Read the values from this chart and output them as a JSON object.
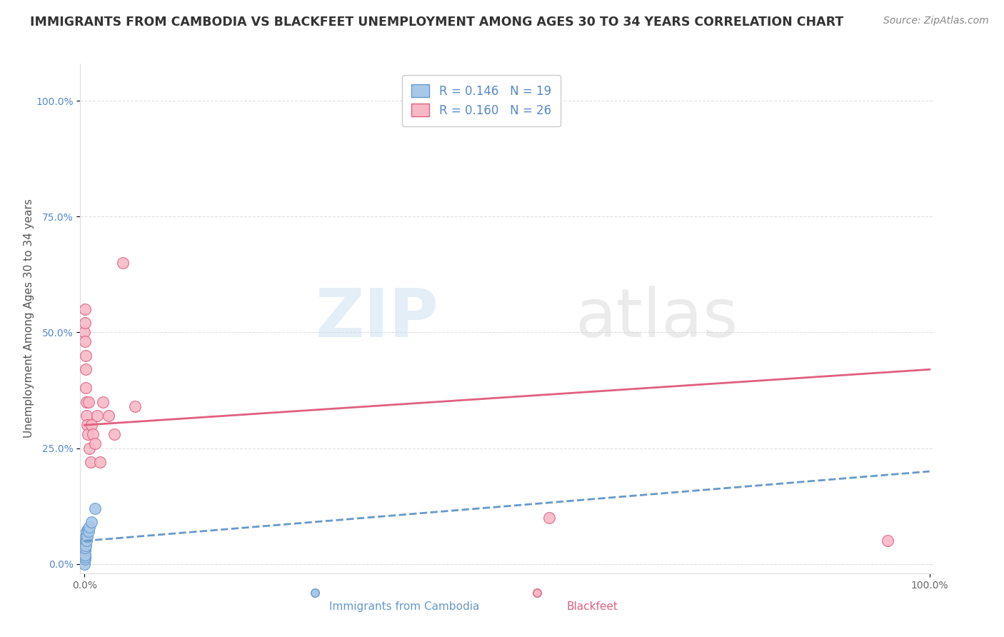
{
  "title": "IMMIGRANTS FROM CAMBODIA VS BLACKFEET UNEMPLOYMENT AMONG AGES 30 TO 34 YEARS CORRELATION CHART",
  "source": "Source: ZipAtlas.com",
  "ylabel": "Unemployment Among Ages 30 to 34 years",
  "xlim": [
    0.0,
    1.0
  ],
  "ylim": [
    0.0,
    1.0
  ],
  "ytick_values": [
    0.0,
    0.25,
    0.5,
    0.75,
    1.0
  ],
  "ytick_labels": [
    "0.0%",
    "25.0%",
    "50.0%",
    "75.0%",
    "100.0%"
  ],
  "xtick_values": [
    0.0,
    1.0
  ],
  "xtick_labels": [
    "0.0%",
    "100.0%"
  ],
  "legend_R1": "0.146",
  "legend_N1": "19",
  "legend_R2": "0.160",
  "legend_N2": "26",
  "color_cambodia_fill": "#a8c8e8",
  "color_cambodia_edge": "#6699cc",
  "color_blackfeet_fill": "#f8b8c8",
  "color_blackfeet_edge": "#e06080",
  "color_line_cambodia": "#6699cc",
  "color_line_blackfeet": "#e06080",
  "color_tick_right": "#5588cc",
  "watermark_color": "#d8e8f0",
  "background_color": "#ffffff",
  "grid_color": "#e0e0e0",
  "title_color": "#333333",
  "title_fontsize": 12.5,
  "axis_label_fontsize": 11,
  "tick_fontsize": 10,
  "legend_fontsize": 12,
  "source_fontsize": 10,
  "cambodia_x": [
    0.0,
    0.0002,
    0.0003,
    0.0004,
    0.0005,
    0.0006,
    0.0007,
    0.0008,
    0.001,
    0.0012,
    0.0015,
    0.002,
    0.0025,
    0.003,
    0.004,
    0.005,
    0.006,
    0.008,
    0.012
  ],
  "cambodia_y": [
    0.0,
    0.01,
    0.02,
    0.015,
    0.03,
    0.02,
    0.04,
    0.035,
    0.05,
    0.04,
    0.06,
    0.05,
    0.07,
    0.06,
    0.075,
    0.07,
    0.08,
    0.09,
    0.12
  ],
  "blackfeet_x": [
    0.0,
    0.0003,
    0.0005,
    0.0008,
    0.001,
    0.0012,
    0.0015,
    0.002,
    0.0025,
    0.003,
    0.004,
    0.005,
    0.006,
    0.007,
    0.008,
    0.01,
    0.012,
    0.015,
    0.018,
    0.022,
    0.028,
    0.035,
    0.045,
    0.06,
    0.55,
    0.95
  ],
  "blackfeet_y": [
    0.5,
    0.55,
    0.52,
    0.48,
    0.45,
    0.42,
    0.38,
    0.35,
    0.32,
    0.3,
    0.28,
    0.35,
    0.25,
    0.22,
    0.3,
    0.28,
    0.26,
    0.32,
    0.22,
    0.35,
    0.32,
    0.28,
    0.65,
    0.34,
    0.1,
    0.05
  ],
  "trend_cam_x0": 0.0,
  "trend_cam_x1": 1.0,
  "trend_cam_y0": 0.05,
  "trend_cam_y1": 0.2,
  "trend_blk_x0": 0.0,
  "trend_blk_x1": 1.0,
  "trend_blk_y0": 0.3,
  "trend_blk_y1": 0.42
}
